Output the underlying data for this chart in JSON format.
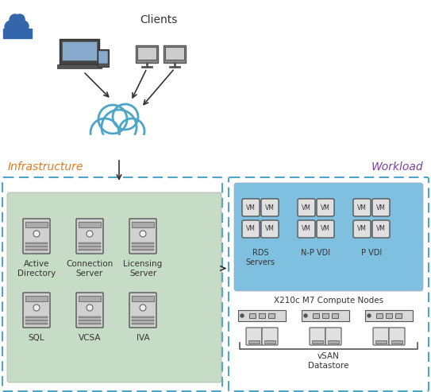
{
  "title": "",
  "bg_color": "#ffffff",
  "clients_label": "Clients",
  "infra_label": "Infrastructure",
  "workload_label": "Workload",
  "infra_servers_top": [
    "Active\nDirectory",
    "Connection\nServer",
    "Licensing\nServer"
  ],
  "infra_servers_bot": [
    "SQL",
    "VCSA",
    "IVA"
  ],
  "vm_groups": [
    {
      "label": "RDS\nServers"
    },
    {
      "label": "N-P VDI"
    },
    {
      "label": "P VDI"
    }
  ],
  "compute_label": "X210c M7 Compute Nodes",
  "vsan_label": "vSAN\nDatastore",
  "infra_box_color": "#c6dcc6",
  "workload_vm_box_color": "#7fbfdf",
  "dashed_border_color": "#4da6c8",
  "server_color": "#888888",
  "vm_box_color": "#c8c8c8",
  "label_color_infra": "#e07820",
  "label_color_workload": "#8040a0",
  "arrow_color": "#333333",
  "cloud_color": "#4da6c8"
}
